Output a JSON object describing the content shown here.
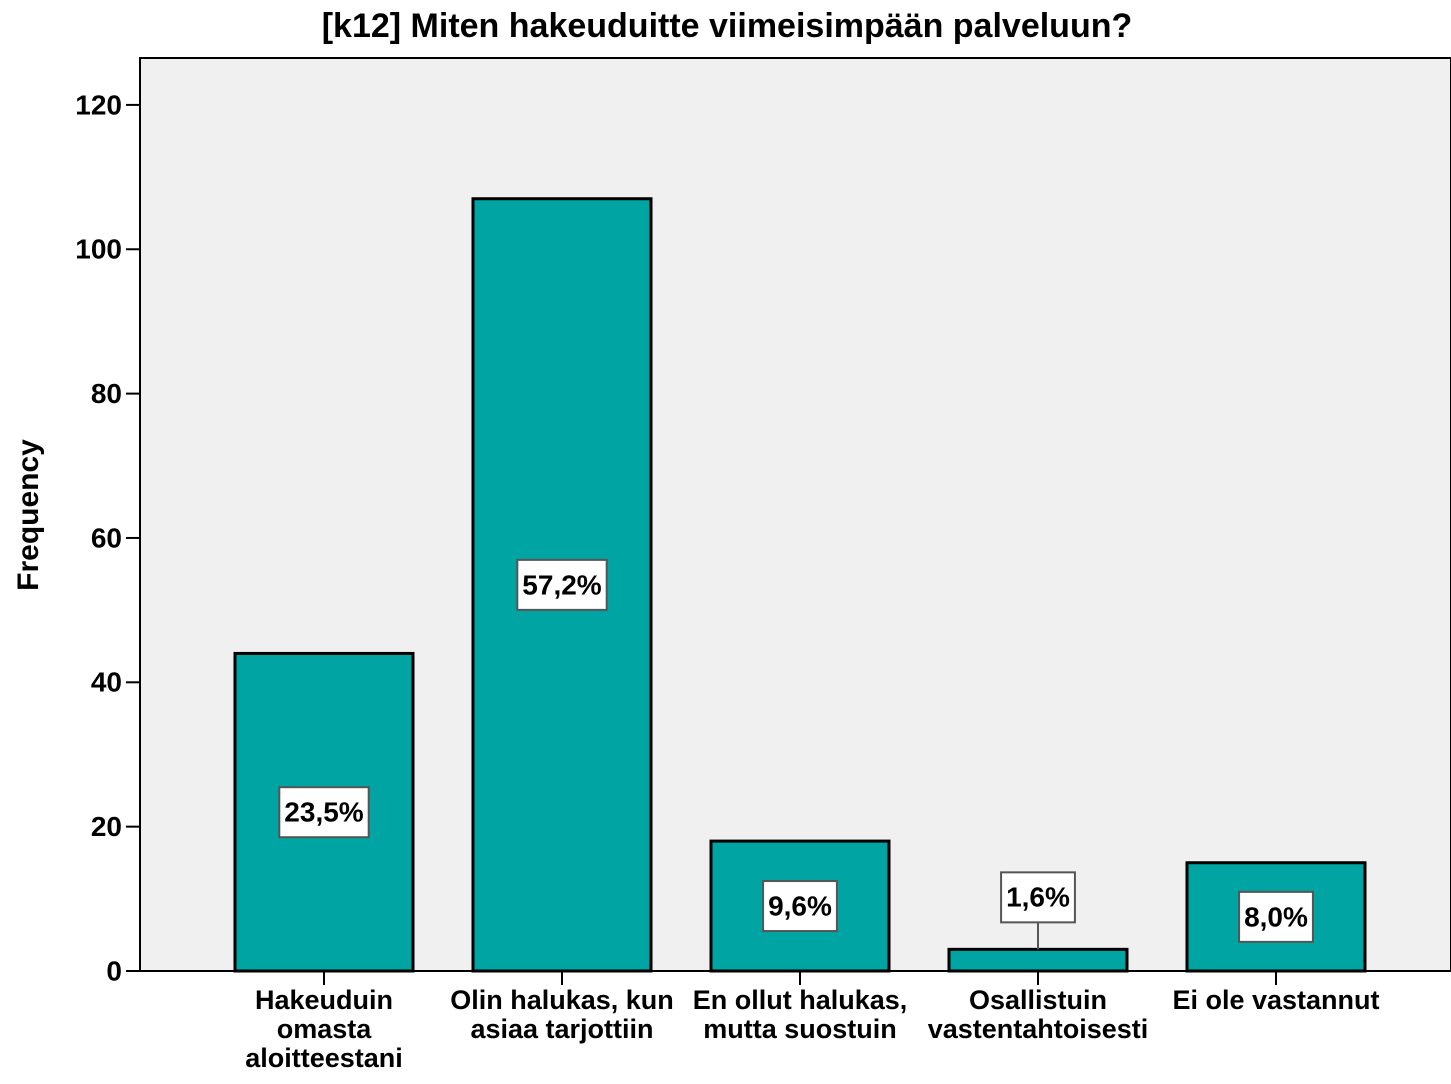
{
  "chart_data": {
    "type": "bar",
    "title": "[k12] Miten hakeuduitte viimeisimpään palveluun?",
    "y_label": "Frequency",
    "categories": [
      "Hakeuduin\nomasta\naloitteestani",
      "Olin halukas, kun\nasiaa tarjottiin",
      "En ollut halukas,\nmutta suostuin",
      "Osallistuin\nvastentahtoisesti",
      "Ei ole vastannut"
    ],
    "values": [
      44,
      107,
      18,
      3,
      15
    ],
    "data_labels": [
      "23,5%",
      "57,2%",
      "9,6%",
      "1,6%",
      "8,0%"
    ],
    "color": "#00a5a3",
    "ylim": [
      0,
      126.5
    ],
    "yticks": [
      0,
      20,
      40,
      60,
      80,
      100,
      120
    ],
    "grid": false
  }
}
